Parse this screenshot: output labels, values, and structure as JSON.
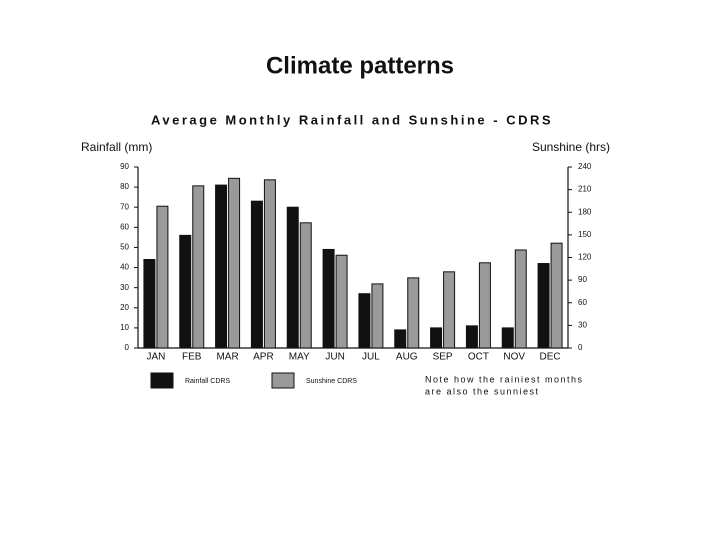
{
  "slide_title": "Climate patterns",
  "chart_data": {
    "type": "bar",
    "title": "Average Monthly Rainfall and Sunshine - CDRS",
    "y_label": "Rainfall (mm)",
    "y2_label": "Sunshine (hrs)",
    "categories": [
      "JAN",
      "FEB",
      "MAR",
      "APR",
      "MAY",
      "JUN",
      "JUL",
      "AUG",
      "SEP",
      "OCT",
      "NOV",
      "DEC"
    ],
    "series": [
      {
        "name": "Rainfall CDRS",
        "color": "#111111",
        "values": [
          44,
          56,
          81,
          73,
          70,
          49,
          27,
          9,
          10,
          11,
          10,
          42
        ]
      },
      {
        "name": "Sunshine CDRS",
        "color": "#9a9a9a",
        "axis": "y2",
        "values": [
          188,
          215,
          225,
          223,
          166,
          123,
          85,
          93,
          101,
          113,
          130,
          139
        ]
      }
    ],
    "ylim": [
      0,
      90
    ],
    "yticks": [
      0,
      10,
      20,
      30,
      40,
      50,
      60,
      70,
      80,
      90
    ],
    "y2lim": [
      0,
      240
    ],
    "y2ticks": [
      0,
      30,
      60,
      90,
      120,
      150,
      180,
      210,
      240
    ],
    "annotations": [
      "Note how the rainiest months",
      "are also the sunniest"
    ],
    "grid": false
  }
}
